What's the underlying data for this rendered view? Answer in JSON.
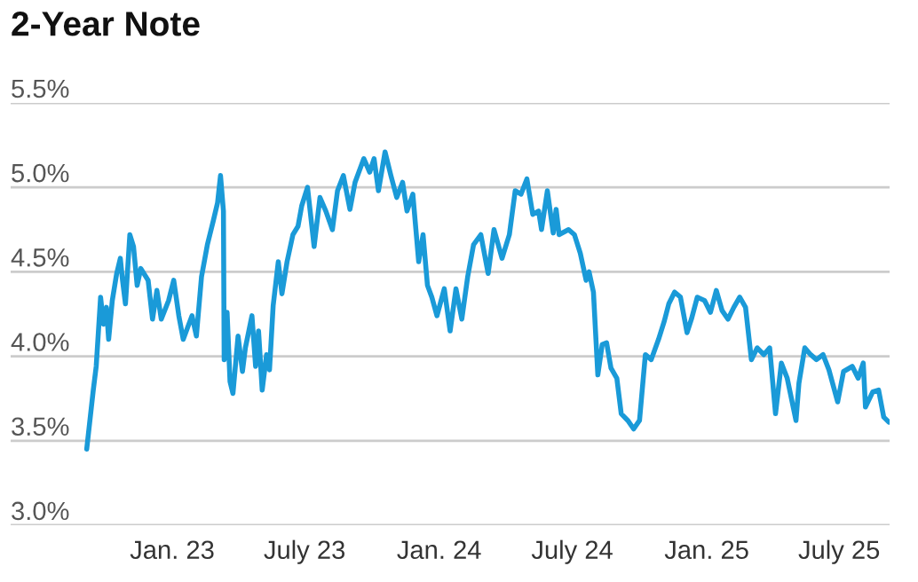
{
  "chart_data": {
    "type": "line",
    "title": "2-Year Note",
    "x": [
      "2022-09-06",
      "2022-09-15",
      "2022-09-19",
      "2022-09-25",
      "2022-09-29",
      "2022-10-03",
      "2022-10-06",
      "2022-10-11",
      "2022-10-17",
      "2022-10-22",
      "2022-10-25",
      "2022-10-29",
      "2022-11-04",
      "2022-11-09",
      "2022-11-14",
      "2022-11-19",
      "2022-11-29",
      "2022-12-05",
      "2022-12-11",
      "2022-12-17",
      "2022-12-27",
      "2023-01-03",
      "2023-01-10",
      "2023-01-16",
      "2023-01-28",
      "2023-02-03",
      "2023-02-10",
      "2023-02-18",
      "2023-02-26",
      "2023-03-04",
      "2023-03-08",
      "2023-03-12",
      "2023-03-13",
      "2023-03-17",
      "2023-03-21",
      "2023-03-25",
      "2023-04-01",
      "2023-04-07",
      "2023-04-11",
      "2023-04-20",
      "2023-04-25",
      "2023-04-29",
      "2023-05-04",
      "2023-05-10",
      "2023-05-14",
      "2023-05-19",
      "2023-05-26",
      "2023-05-31",
      "2023-06-07",
      "2023-06-15",
      "2023-06-22",
      "2023-06-27",
      "2023-07-05",
      "2023-07-14",
      "2023-07-22",
      "2023-07-30",
      "2023-08-08",
      "2023-08-15",
      "2023-08-23",
      "2023-09-01",
      "2023-09-08",
      "2023-09-20",
      "2023-09-28",
      "2023-10-04",
      "2023-10-10",
      "2023-10-19",
      "2023-10-27",
      "2023-11-04",
      "2023-11-12",
      "2023-11-18",
      "2023-11-26",
      "2023-12-04",
      "2023-12-10",
      "2023-12-16",
      "2023-12-22",
      "2023-12-29",
      "2024-01-08",
      "2024-01-16",
      "2024-01-24",
      "2024-02-01",
      "2024-02-09",
      "2024-02-17",
      "2024-02-27",
      "2024-03-08",
      "2024-03-16",
      "2024-03-27",
      "2024-04-06",
      "2024-04-14",
      "2024-04-22",
      "2024-04-30",
      "2024-05-08",
      "2024-05-16",
      "2024-05-20",
      "2024-05-28",
      "2024-06-05",
      "2024-06-09",
      "2024-06-13",
      "2024-06-26",
      "2024-07-04",
      "2024-07-12",
      "2024-07-20",
      "2024-07-24",
      "2024-07-30",
      "2024-08-05",
      "2024-08-11",
      "2024-08-17",
      "2024-08-23",
      "2024-08-31",
      "2024-09-06",
      "2024-09-15",
      "2024-09-23",
      "2024-10-01",
      "2024-10-09",
      "2024-10-17",
      "2024-10-27",
      "2024-11-04",
      "2024-11-10",
      "2024-11-18",
      "2024-11-26",
      "2024-12-05",
      "2024-12-11",
      "2024-12-19",
      "2024-12-29",
      "2025-01-06",
      "2025-01-14",
      "2025-01-22",
      "2025-01-30",
      "2025-02-07",
      "2025-02-15",
      "2025-02-23",
      "2025-03-03",
      "2025-03-11",
      "2025-03-20",
      "2025-03-28",
      "2025-04-05",
      "2025-04-13",
      "2025-04-21",
      "2025-05-03",
      "2025-05-07",
      "2025-05-15",
      "2025-05-23",
      "2025-05-31",
      "2025-06-09",
      "2025-06-17",
      "2025-06-29",
      "2025-07-07",
      "2025-07-19",
      "2025-07-27",
      "2025-08-03",
      "2025-08-06",
      "2025-08-16",
      "2025-08-24",
      "2025-08-31",
      "2025-09-07"
    ],
    "series": [
      {
        "color": "#1a9ad8",
        "values": [
          3.45,
          3.8,
          3.94,
          4.35,
          4.19,
          4.29,
          4.1,
          4.33,
          4.49,
          4.58,
          4.45,
          4.31,
          4.72,
          4.65,
          4.42,
          4.52,
          4.45,
          4.22,
          4.39,
          4.22,
          4.33,
          4.45,
          4.24,
          4.1,
          4.24,
          4.12,
          4.47,
          4.66,
          4.8,
          4.91,
          5.07,
          4.86,
          3.98,
          4.26,
          3.85,
          3.78,
          4.12,
          3.91,
          4.05,
          4.24,
          3.94,
          4.15,
          3.8,
          4.01,
          3.92,
          4.3,
          4.56,
          4.37,
          4.56,
          4.72,
          4.77,
          4.89,
          5.0,
          4.65,
          4.94,
          4.86,
          4.75,
          4.98,
          5.07,
          4.87,
          5.03,
          5.17,
          5.09,
          5.17,
          4.98,
          5.21,
          5.07,
          4.94,
          5.03,
          4.86,
          4.96,
          4.56,
          4.72,
          4.42,
          4.35,
          4.24,
          4.4,
          4.15,
          4.4,
          4.22,
          4.47,
          4.66,
          4.72,
          4.49,
          4.75,
          4.58,
          4.72,
          4.98,
          4.96,
          5.05,
          4.84,
          4.86,
          4.75,
          4.98,
          4.73,
          4.87,
          4.72,
          4.75,
          4.72,
          4.61,
          4.45,
          4.5,
          4.38,
          3.89,
          4.07,
          4.08,
          3.93,
          3.87,
          3.66,
          3.62,
          3.57,
          3.62,
          4.01,
          3.98,
          4.1,
          4.21,
          4.31,
          4.38,
          4.35,
          4.14,
          4.22,
          4.35,
          4.33,
          4.26,
          4.39,
          4.27,
          4.22,
          4.29,
          4.35,
          4.29,
          3.98,
          4.05,
          4.01,
          4.05,
          3.66,
          3.96,
          3.87,
          3.62,
          3.84,
          4.05,
          4.01,
          3.98,
          4.01,
          3.92,
          3.73,
          3.91,
          3.94,
          3.87,
          3.96,
          3.7,
          3.79,
          3.8,
          3.64,
          3.61
        ]
      }
    ],
    "xlim": [
      "2022-05-25",
      "2025-09-08"
    ],
    "xticks": [
      {
        "value": "2023-01-01",
        "label": "Jan. 23"
      },
      {
        "value": "2023-07-01",
        "label": "July 23"
      },
      {
        "value": "2024-01-01",
        "label": "Jan. 24"
      },
      {
        "value": "2024-07-01",
        "label": "July 24"
      },
      {
        "value": "2025-01-01",
        "label": "Jan. 25"
      },
      {
        "value": "2025-07-01",
        "label": "July 25"
      }
    ],
    "ylim": [
      3,
      5.5
    ],
    "yticks": [
      {
        "value": 3,
        "label": "3.0%"
      },
      {
        "value": 3.5,
        "label": "3.5%"
      },
      {
        "value": 4,
        "label": "4.0%"
      },
      {
        "value": 4.5,
        "label": "4.5%"
      },
      {
        "value": 5,
        "label": "5.0%"
      },
      {
        "value": 5.5,
        "label": "5.5%"
      }
    ],
    "grid": "y",
    "legend": false,
    "marker": "none",
    "line_style": "solid"
  }
}
